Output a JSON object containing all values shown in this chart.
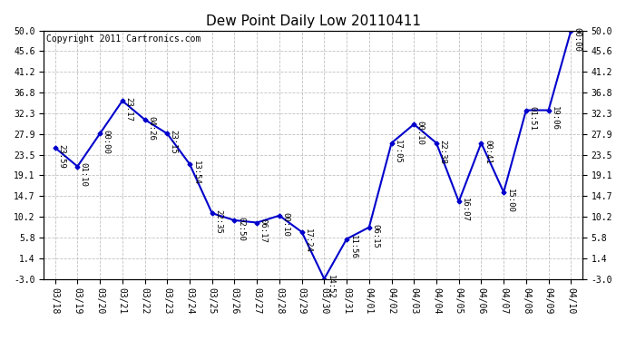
{
  "title": "Dew Point Daily Low 20110411",
  "copyright": "Copyright 2011 Cartronics.com",
  "x_labels": [
    "03/18",
    "03/19",
    "03/20",
    "03/21",
    "03/22",
    "03/23",
    "03/24",
    "03/25",
    "03/26",
    "03/27",
    "03/28",
    "03/29",
    "03/30",
    "03/31",
    "04/01",
    "04/02",
    "04/03",
    "04/04",
    "04/05",
    "04/06",
    "04/07",
    "04/08",
    "04/09",
    "04/10"
  ],
  "y_values": [
    25.0,
    21.0,
    28.0,
    35.0,
    31.0,
    28.0,
    21.5,
    11.0,
    9.5,
    9.0,
    10.5,
    7.0,
    -3.0,
    5.5,
    8.0,
    26.0,
    30.0,
    26.0,
    13.5,
    26.0,
    15.5,
    33.0,
    33.0,
    50.0
  ],
  "time_labels": [
    "23:59",
    "01:10",
    "00:00",
    "23:17",
    "04:26",
    "23:15",
    "13:54",
    "22:35",
    "02:50",
    "06:17",
    "00:10",
    "17:24",
    "14:52",
    "11:56",
    "06:15",
    "17:05",
    "00:10",
    "22:38",
    "16:07",
    "00:41",
    "15:00",
    "01:51",
    "19:06",
    "00:00"
  ],
  "y_ticks": [
    -3.0,
    1.4,
    5.8,
    10.2,
    14.7,
    19.1,
    23.5,
    27.9,
    32.3,
    36.8,
    41.2,
    45.6,
    50.0
  ],
  "line_color": "#0000cc",
  "marker_color": "#0000cc",
  "bg_color": "#ffffff",
  "plot_bg_color": "#ffffff",
  "grid_color": "#bbbbbb",
  "title_fontsize": 11,
  "tick_fontsize": 7,
  "annotation_fontsize": 6.5,
  "copyright_fontsize": 7
}
